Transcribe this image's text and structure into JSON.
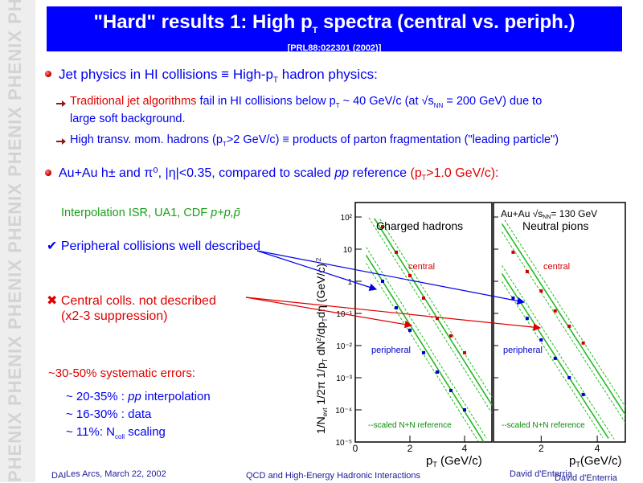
{
  "sidebar": {
    "logo_text": "PHENIX PHENIX PHENIX PHENIX PHENIX PHENIX PHENIX"
  },
  "title": {
    "main": "\"Hard\" results 1: High p",
    "main_sub": "T",
    "main_tail": " spectra (central vs. periph.)",
    "reference": "[PRL88:022301 (2002)]"
  },
  "bullet1": {
    "lead": "Jet physics in HI collisions ≡  High-p",
    "sub": "T",
    "tail": " hadron physics:"
  },
  "sub1": {
    "red_part": "Traditional jet algorithms",
    "text": " fail in HI collisions below p",
    "sub": "T",
    "text2": " ~ 40 GeV/c (at √s",
    "sub2": "NN",
    "text3": " = 200 GeV) due to",
    "line2": "large soft background."
  },
  "sub2": {
    "text": "High transv. mom. hadrons (p",
    "sub": "T",
    "text2": ">2 GeV/c) ≡  products of parton fragmentation (\"leading particle\")"
  },
  "bullet2": {
    "text": "Au+Au h± and π⁰, |η|<0.35, compared to scaled ",
    "pp": "pp",
    "text2": " reference ",
    "red": "(p",
    "red_sub": "T",
    "red_tail": ">1.0 GeV/c):"
  },
  "left": {
    "interp_text": "Interpolation ISR, UA1, CDF ",
    "interp_italic": "p+p,p̄",
    "periph": "✔ Peripheral collisions well described",
    "central_line1": "✖ Central colls. not described",
    "central_line2": "(x2-3 suppression)",
    "syst": "~30-50% systematic errors:",
    "item1_pre": "~ 20-35% : ",
    "item1_italic": "pp",
    "item1_post": " interpolation",
    "item2": "~ 16-30% : data",
    "item3_pre": "~ 11%: N",
    "item3_sub": "coll",
    "item3_post": " scaling"
  },
  "plot": {
    "ylabel": "1/N",
    "ylabel_sub": "evt",
    "ylabel_rest": " 1/2π 1/p",
    "ylabel_sub2": "T",
    "ylabel_rest2": " dN",
    "ylabel_sup": "2",
    "ylabel_rest3": "/dp",
    "ylabel_sub3": "T",
    "ylabel_rest4": "dη (GeV/c)",
    "ylabel_sup2": "-2",
    "xlabel": "p",
    "xlabel_sub": "T",
    "xlabel_unit": " (GeV/c)",
    "xlabel2_unit": "(GeV/c)",
    "panel1_title": "Charged hadrons",
    "panel2_title": "Neutral pions",
    "system_label": "Au+Au √s",
    "system_sub": "NN",
    "system_tail": "= 130 GeV",
    "central": "central",
    "peripheral": "peripheral",
    "reference": "--scaled N+N reference",
    "yticks": [
      "10²",
      "10",
      "1",
      "10⁻¹",
      "10⁻²",
      "10⁻³",
      "10⁻⁴",
      "10⁻⁵"
    ],
    "xticks_left": [
      "0",
      "2",
      "4"
    ],
    "xticks_right": [
      "2",
      "4"
    ]
  },
  "chart_data": {
    "type": "scatter",
    "panels": [
      {
        "name": "Charged hadrons",
        "x": [
          1.0,
          1.5,
          2.0,
          2.5,
          3.0,
          3.5,
          4.0
        ],
        "series": [
          {
            "name": "central",
            "values": [
              50,
              8,
              1.5,
              0.3,
              0.07,
              0.02,
              0.006
            ]
          },
          {
            "name": "peripheral",
            "values": [
              1.0,
              0.15,
              0.03,
              0.006,
              0.0015,
              0.0004,
              0.0001
            ]
          }
        ]
      },
      {
        "name": "Neutral pions",
        "x": [
          1.0,
          1.5,
          2.0,
          2.5,
          3.0,
          3.5
        ],
        "series": [
          {
            "name": "central",
            "values": [
              8,
              2,
              0.5,
              0.12,
              0.04,
              0.012
            ]
          },
          {
            "name": "peripheral",
            "values": [
              0.3,
              0.07,
              0.015,
              0.004,
              0.001,
              0.0003
            ]
          }
        ]
      }
    ]
  },
  "footer": {
    "left_a": "DAI",
    "left_b": "Les Arcs, March 22, 2002",
    "center": "QCD and High-Energy Hadronic Interactions",
    "right_a": "David d'Enterria",
    "right_b": "David d'Enterria"
  },
  "colors": {
    "title_bg": "#0000ff",
    "accent_red": "#e00000",
    "accent_green": "#1aa01a",
    "accent_blue": "#0000ee"
  }
}
